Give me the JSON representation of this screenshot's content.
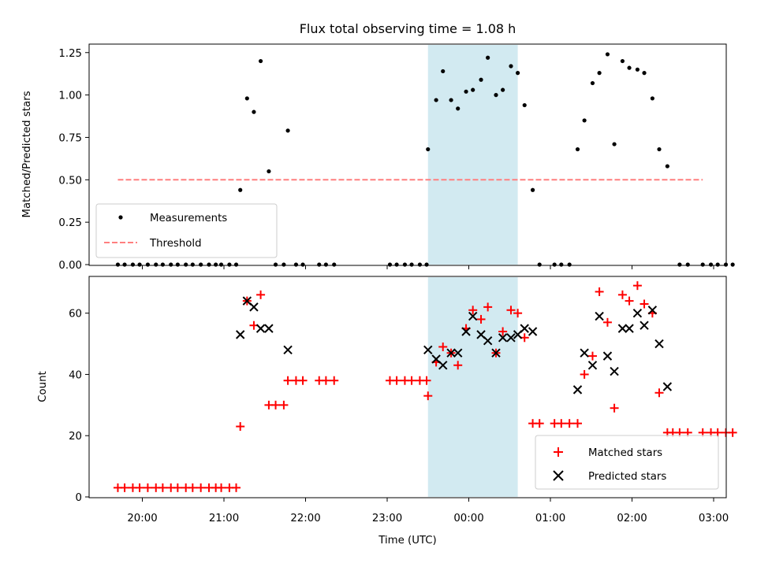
{
  "chart_data": [
    {
      "type": "scatter",
      "title": "Flux total observing time = 1.08 h",
      "xlabel": "",
      "ylabel": "Matched/Predicted stars",
      "ylim": [
        0,
        1.3
      ],
      "yticks": [
        "0.00",
        "0.25",
        "0.50",
        "0.75",
        "1.00",
        "1.25"
      ],
      "ytick_values": [
        0,
        0.25,
        0.5,
        0.75,
        1.0,
        1.25
      ],
      "shaded_span": {
        "start": "23:30",
        "end": "00:36"
      },
      "legend": {
        "placement": "lower-left",
        "entries": [
          "Measurements",
          "Threshold"
        ]
      },
      "series": [
        {
          "name": "Measurements",
          "color": "#000000",
          "marker": "dot",
          "points": [
            [
              "19:42",
              0
            ],
            [
              "19:47",
              0
            ],
            [
              "19:53",
              0
            ],
            [
              "19:58",
              0
            ],
            [
              "20:04",
              0
            ],
            [
              "20:10",
              0
            ],
            [
              "20:15",
              0
            ],
            [
              "20:21",
              0
            ],
            [
              "20:26",
              0
            ],
            [
              "20:32",
              0
            ],
            [
              "20:37",
              0
            ],
            [
              "20:43",
              0
            ],
            [
              "20:49",
              0
            ],
            [
              "20:54",
              0
            ],
            [
              "20:58",
              0
            ],
            [
              "21:04",
              0
            ],
            [
              "21:09",
              0
            ],
            [
              "21:12",
              0.44
            ],
            [
              "21:17",
              0.98
            ],
            [
              "21:22",
              0.9
            ],
            [
              "21:27",
              1.2
            ],
            [
              "21:33",
              0.55
            ],
            [
              "21:38",
              0
            ],
            [
              "21:44",
              0
            ],
            [
              "21:47",
              0.79
            ],
            [
              "21:53",
              0
            ],
            [
              "21:58",
              0
            ],
            [
              "22:10",
              0
            ],
            [
              "22:15",
              0
            ],
            [
              "22:21",
              0
            ],
            [
              "23:02",
              0
            ],
            [
              "23:07",
              0
            ],
            [
              "23:13",
              0
            ],
            [
              "23:18",
              0
            ],
            [
              "23:24",
              0
            ],
            [
              "23:29",
              0
            ],
            [
              "23:30",
              0.68
            ],
            [
              "23:36",
              0.97
            ],
            [
              "23:41",
              1.14
            ],
            [
              "23:47",
              0.97
            ],
            [
              "23:52",
              0.92
            ],
            [
              "23:58",
              1.02
            ],
            [
              "00:03",
              1.03
            ],
            [
              "00:09",
              1.09
            ],
            [
              "00:14",
              1.22
            ],
            [
              "00:20",
              1.0
            ],
            [
              "00:25",
              1.03
            ],
            [
              "00:31",
              1.17
            ],
            [
              "00:36",
              1.13
            ],
            [
              "00:41",
              0.94
            ],
            [
              "00:47",
              0.44
            ],
            [
              "00:52",
              0
            ],
            [
              "01:03",
              0
            ],
            [
              "01:08",
              0
            ],
            [
              "01:14",
              0
            ],
            [
              "01:20",
              0.68
            ],
            [
              "01:25",
              0.85
            ],
            [
              "01:31",
              1.07
            ],
            [
              "01:36",
              1.13
            ],
            [
              "01:42",
              1.24
            ],
            [
              "01:47",
              0.71
            ],
            [
              "01:53",
              1.2
            ],
            [
              "01:58",
              1.16
            ],
            [
              "02:04",
              1.15
            ],
            [
              "02:09",
              1.13
            ],
            [
              "02:15",
              0.98
            ],
            [
              "02:20",
              0.68
            ],
            [
              "02:26",
              0.58
            ],
            [
              "02:35",
              0
            ],
            [
              "02:41",
              0
            ],
            [
              "02:52",
              0
            ],
            [
              "02:58",
              0
            ],
            [
              "03:03",
              0
            ],
            [
              "03:09",
              0
            ],
            [
              "03:14",
              0
            ]
          ]
        },
        {
          "name": "Threshold",
          "color": "#ff7f7f",
          "style": "dashed",
          "x": [
            "19:42",
            "02:52"
          ],
          "y": [
            0.5,
            0.5
          ]
        }
      ]
    },
    {
      "type": "scatter",
      "title": "",
      "xlabel": "Time (UTC)",
      "ylabel": "Count",
      "ylim": [
        0,
        72
      ],
      "yticks": [
        "0",
        "20",
        "40",
        "60"
      ],
      "ytick_values": [
        0,
        20,
        40,
        60
      ],
      "xticks": [
        "20:00",
        "21:00",
        "22:00",
        "23:00",
        "00:00",
        "01:00",
        "02:00",
        "03:00"
      ],
      "shaded_span": {
        "start": "23:30",
        "end": "00:36"
      },
      "legend": {
        "placement": "lower-right",
        "entries": [
          "Matched stars",
          "Predicted stars"
        ]
      },
      "series": [
        {
          "name": "Matched stars",
          "color": "#ff0000",
          "marker": "plus",
          "points": [
            [
              "19:42",
              3
            ],
            [
              "19:47",
              3
            ],
            [
              "19:53",
              3
            ],
            [
              "19:58",
              3
            ],
            [
              "20:04",
              3
            ],
            [
              "20:10",
              3
            ],
            [
              "20:15",
              3
            ],
            [
              "20:21",
              3
            ],
            [
              "20:26",
              3
            ],
            [
              "20:32",
              3
            ],
            [
              "20:37",
              3
            ],
            [
              "20:43",
              3
            ],
            [
              "20:49",
              3
            ],
            [
              "20:54",
              3
            ],
            [
              "20:58",
              3
            ],
            [
              "21:04",
              3
            ],
            [
              "21:09",
              3
            ],
            [
              "21:12",
              23
            ],
            [
              "21:17",
              64
            ],
            [
              "21:22",
              56
            ],
            [
              "21:27",
              66
            ],
            [
              "21:33",
              30
            ],
            [
              "21:38",
              30
            ],
            [
              "21:44",
              30
            ],
            [
              "21:47",
              38
            ],
            [
              "21:53",
              38
            ],
            [
              "21:58",
              38
            ],
            [
              "22:10",
              38
            ],
            [
              "22:15",
              38
            ],
            [
              "22:21",
              38
            ],
            [
              "23:02",
              38
            ],
            [
              "23:07",
              38
            ],
            [
              "23:13",
              38
            ],
            [
              "23:18",
              38
            ],
            [
              "23:24",
              38
            ],
            [
              "23:29",
              38
            ],
            [
              "23:30",
              33
            ],
            [
              "23:36",
              44
            ],
            [
              "23:41",
              49
            ],
            [
              "23:47",
              47
            ],
            [
              "23:52",
              43
            ],
            [
              "23:58",
              55
            ],
            [
              "00:03",
              61
            ],
            [
              "00:09",
              58
            ],
            [
              "00:14",
              62
            ],
            [
              "00:20",
              47
            ],
            [
              "00:25",
              54
            ],
            [
              "00:31",
              61
            ],
            [
              "00:36",
              60
            ],
            [
              "00:41",
              52
            ],
            [
              "00:47",
              24
            ],
            [
              "00:52",
              24
            ],
            [
              "01:03",
              24
            ],
            [
              "01:08",
              24
            ],
            [
              "01:14",
              24
            ],
            [
              "01:20",
              24
            ],
            [
              "01:25",
              40
            ],
            [
              "01:31",
              46
            ],
            [
              "01:36",
              67
            ],
            [
              "01:42",
              57
            ],
            [
              "01:47",
              29
            ],
            [
              "01:53",
              66
            ],
            [
              "01:58",
              64
            ],
            [
              "02:04",
              69
            ],
            [
              "02:09",
              63
            ],
            [
              "02:15",
              60
            ],
            [
              "02:20",
              34
            ],
            [
              "02:26",
              21
            ],
            [
              "02:30",
              21
            ],
            [
              "02:35",
              21
            ],
            [
              "02:41",
              21
            ],
            [
              "02:52",
              21
            ],
            [
              "02:58",
              21
            ],
            [
              "03:03",
              21
            ],
            [
              "03:09",
              21
            ],
            [
              "03:14",
              21
            ]
          ]
        },
        {
          "name": "Predicted stars",
          "color": "#000000",
          "marker": "x",
          "points": [
            [
              "21:12",
              53
            ],
            [
              "21:17",
              64
            ],
            [
              "21:22",
              62
            ],
            [
              "21:27",
              55
            ],
            [
              "21:33",
              55
            ],
            [
              "21:47",
              48
            ],
            [
              "23:30",
              48
            ],
            [
              "23:36",
              45
            ],
            [
              "23:41",
              43
            ],
            [
              "23:47",
              47
            ],
            [
              "23:52",
              47
            ],
            [
              "23:58",
              54
            ],
            [
              "00:03",
              59
            ],
            [
              "00:09",
              53
            ],
            [
              "00:14",
              51
            ],
            [
              "00:20",
              47
            ],
            [
              "00:25",
              52
            ],
            [
              "00:31",
              52
            ],
            [
              "00:36",
              53
            ],
            [
              "00:41",
              55
            ],
            [
              "00:47",
              54
            ],
            [
              "01:20",
              35
            ],
            [
              "01:25",
              47
            ],
            [
              "01:31",
              43
            ],
            [
              "01:36",
              59
            ],
            [
              "01:42",
              46
            ],
            [
              "01:47",
              41
            ],
            [
              "01:53",
              55
            ],
            [
              "01:58",
              55
            ],
            [
              "02:04",
              60
            ],
            [
              "02:09",
              56
            ],
            [
              "02:15",
              61
            ],
            [
              "02:20",
              50
            ],
            [
              "02:26",
              36
            ]
          ]
        }
      ]
    }
  ]
}
